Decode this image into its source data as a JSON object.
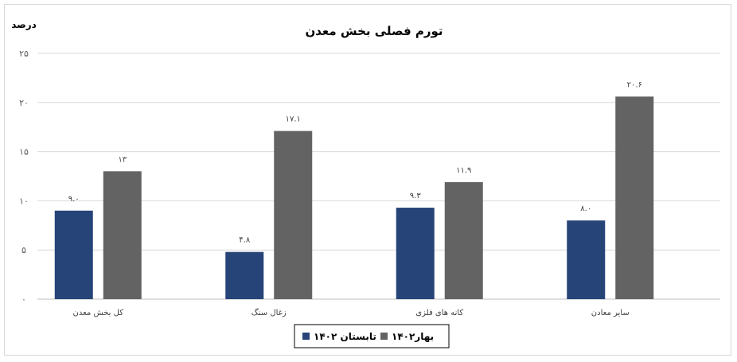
{
  "chart_data": {
    "type": "bar",
    "title": "تورم فصلی بخش معدن",
    "ylabel": "درصد",
    "xlabel": "",
    "ylim": [
      0,
      25
    ],
    "yticks": [
      0,
      5,
      10,
      15,
      20,
      25
    ],
    "ytick_labels": [
      "۰",
      "۵",
      "۱۰",
      "۱۵",
      "۲۰",
      "۲۵"
    ],
    "grid": true,
    "legend_position": "bottom",
    "categories": [
      "کل بخش معدن",
      "زغال سنگ",
      "کانه های فلزی",
      "سایر معادن"
    ],
    "series": [
      {
        "name": "تابستان ۱۴۰۲",
        "color": "#264478",
        "values": [
          9.0,
          4.8,
          9.3,
          8.0
        ],
        "labels": [
          "۹.۰",
          "۴.۸",
          "۹.۳",
          "۸.۰"
        ]
      },
      {
        "name": "بهار۱۴۰۲",
        "color": "#636363",
        "values": [
          13,
          17.1,
          11.9,
          20.6
        ],
        "labels": [
          "۱۳",
          "۱۷.۱",
          "۱۱.۹",
          "۲۰.۶"
        ]
      }
    ]
  }
}
